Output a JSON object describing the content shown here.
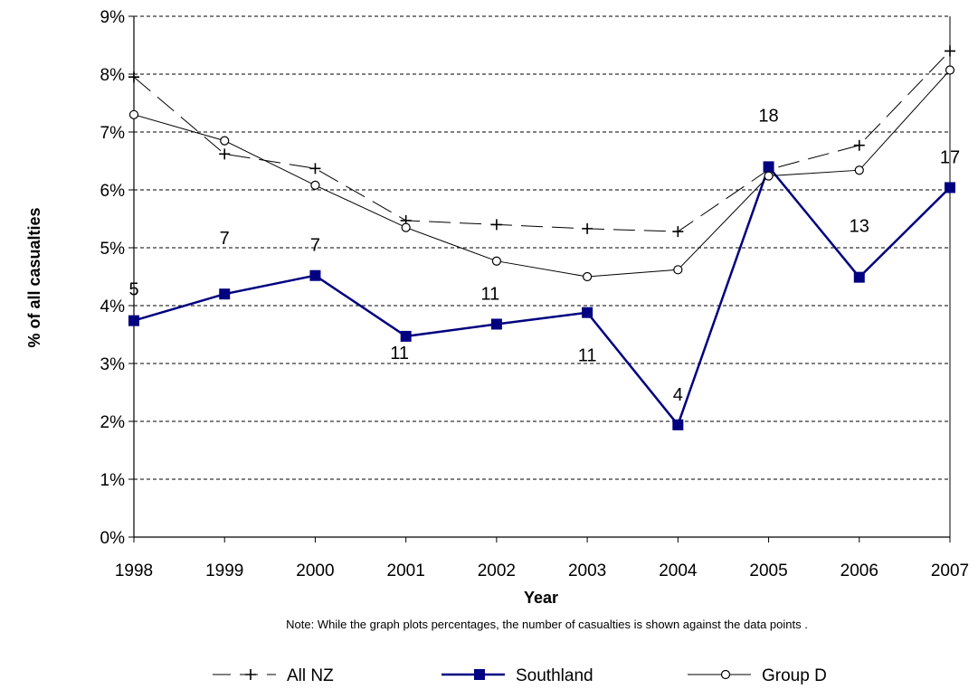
{
  "chart_data": {
    "type": "line",
    "xlabel": "Year",
    "ylabel": "% of all casualties",
    "categories": [
      "1998",
      "1999",
      "2000",
      "2001",
      "2002",
      "2003",
      "2004",
      "2005",
      "2006",
      "2007"
    ],
    "yticks": [
      "0%",
      "1%",
      "2%",
      "3%",
      "4%",
      "5%",
      "6%",
      "7%",
      "8%",
      "9%"
    ],
    "ylim": [
      0,
      9
    ],
    "grid": "horizontal dashed",
    "legend_position": "bottom",
    "series": [
      {
        "name": "All NZ",
        "marker": "plus",
        "line_style": "long-dash",
        "color": "#000000",
        "values": [
          7.95,
          6.62,
          6.37,
          5.47,
          5.4,
          5.33,
          5.28,
          6.35,
          6.77,
          8.4
        ]
      },
      {
        "name": "Southland",
        "marker": "square",
        "line_style": "solid-thick",
        "color": "#000080",
        "values": [
          3.74,
          4.2,
          4.52,
          3.47,
          3.68,
          3.88,
          1.94,
          6.4,
          4.49,
          6.04
        ],
        "data_labels": [
          "5",
          "7",
          "7",
          "11",
          "11",
          "11",
          "4",
          "18",
          "13",
          "17"
        ]
      },
      {
        "name": "Group D",
        "marker": "circle",
        "line_style": "solid-thin",
        "color": "#000000",
        "values": [
          7.3,
          6.85,
          6.08,
          5.35,
          4.77,
          4.5,
          4.62,
          6.24,
          6.34,
          8.07
        ]
      }
    ],
    "note": "Note: While the graph plots percentages, the number of casualties is shown against the data points ."
  }
}
